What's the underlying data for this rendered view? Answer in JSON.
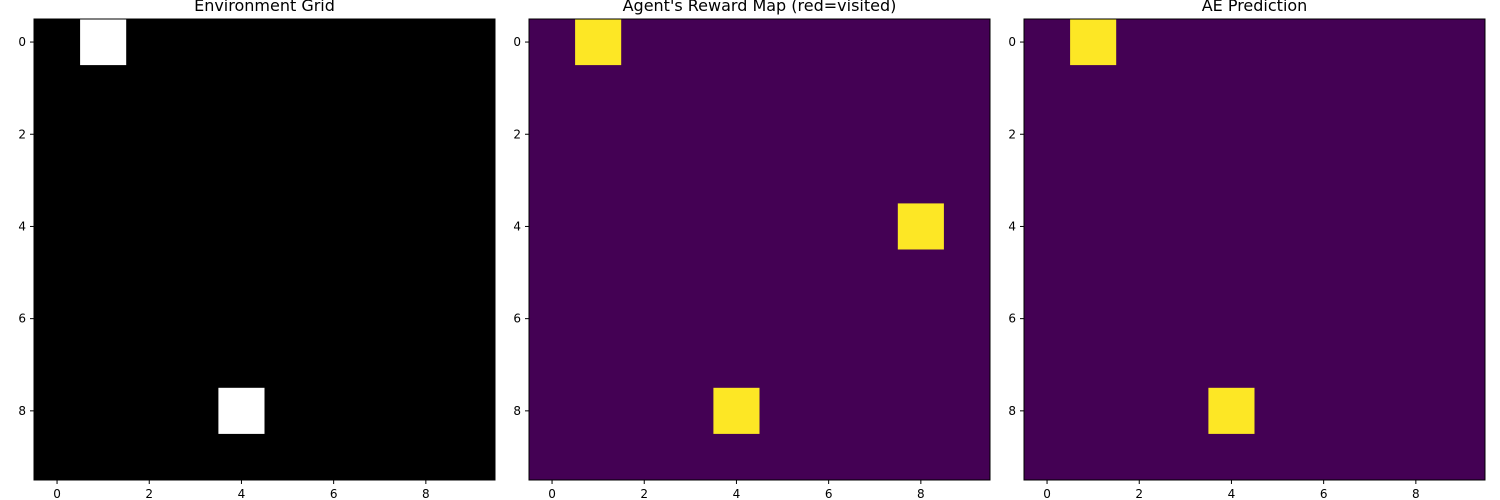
{
  "chart_data": [
    {
      "type": "heatmap",
      "title": "Environment Grid",
      "colormap": "gray",
      "background_color": "#000000",
      "highlight_color": "#ffffff",
      "grid_size": [
        10,
        10
      ],
      "xlim": [
        -0.5,
        9.5
      ],
      "ylim": [
        9.5,
        -0.5
      ],
      "x_ticks": [
        0,
        2,
        4,
        6,
        8
      ],
      "y_ticks": [
        0,
        2,
        4,
        6,
        8
      ],
      "x_tick_labels": [
        "0",
        "2",
        "4",
        "6",
        "8"
      ],
      "y_tick_labels": [
        "0",
        "2",
        "4",
        "6",
        "8"
      ],
      "cells": [
        {
          "row": 0,
          "col": 1,
          "value": 1
        },
        {
          "row": 8,
          "col": 4,
          "value": 1
        }
      ]
    },
    {
      "type": "heatmap",
      "title": "Agent's Reward Map (red=visited)",
      "colormap": "viridis",
      "background_color": "#440154",
      "highlight_color": "#fde725",
      "grid_size": [
        10,
        10
      ],
      "xlim": [
        -0.5,
        9.5
      ],
      "ylim": [
        9.5,
        -0.5
      ],
      "x_ticks": [
        0,
        2,
        4,
        6,
        8
      ],
      "y_ticks": [
        0,
        2,
        4,
        6,
        8
      ],
      "x_tick_labels": [
        "0",
        "2",
        "4",
        "6",
        "8"
      ],
      "y_tick_labels": [
        "0",
        "2",
        "4",
        "6",
        "8"
      ],
      "cells": [
        {
          "row": 0,
          "col": 1,
          "value": 1
        },
        {
          "row": 4,
          "col": 8,
          "value": 1
        },
        {
          "row": 8,
          "col": 4,
          "value": 1
        }
      ]
    },
    {
      "type": "heatmap",
      "title": "AE Prediction",
      "colormap": "viridis",
      "background_color": "#440154",
      "highlight_color": "#fde725",
      "grid_size": [
        10,
        10
      ],
      "xlim": [
        -0.5,
        9.5
      ],
      "ylim": [
        9.5,
        -0.5
      ],
      "x_ticks": [
        0,
        2,
        4,
        6,
        8
      ],
      "y_ticks": [
        0,
        2,
        4,
        6,
        8
      ],
      "x_tick_labels": [
        "0",
        "2",
        "4",
        "6",
        "8"
      ],
      "y_tick_labels": [
        "0",
        "2",
        "4",
        "6",
        "8"
      ],
      "cells": [
        {
          "row": 0,
          "col": 1,
          "value": 1
        },
        {
          "row": 8,
          "col": 4,
          "value": 1
        }
      ]
    }
  ]
}
